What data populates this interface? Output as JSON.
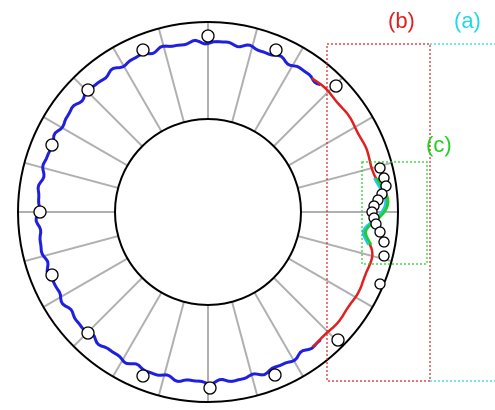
{
  "labels": {
    "a": "(a)",
    "b": "(b)",
    "c": "(c)"
  },
  "colors": {
    "outer_circle": "#000000",
    "inner_circle": "#000000",
    "spokes": "#b0b0b0",
    "curve_coarse": "#1f1fe0",
    "curve_refined": "#e02020",
    "curve_fine": "#20d020",
    "curve_fine_alt": "#20c8e8",
    "label_a": "#20d8e8",
    "label_b": "#e02020",
    "label_c": "#20d020",
    "box_a": "#20d8e8",
    "box_b": "#e02020",
    "box_c": "#20d020"
  },
  "spoke_count": 24
}
